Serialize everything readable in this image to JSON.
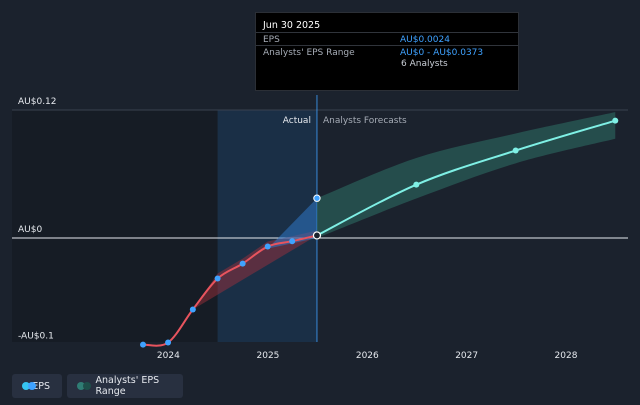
{
  "tooltip": {
    "date": "Jun 30 2025",
    "eps_label": "EPS",
    "eps_value": "AU$0.0024",
    "range_label": "Analysts' EPS Range",
    "range_value": "AU$0 - AU$0.0373",
    "analysts": "6 Analysts"
  },
  "colors": {
    "background": "#1b222d",
    "eps_line": "#e8545e",
    "eps_dot": "#3fa2ff",
    "forecast_line": "#7ff0e5",
    "forecast_band": "#2a5c57",
    "actual_band": "#1f3f63",
    "legend_eps_dot_a": "#36c5f0",
    "legend_eps_dot_b": "#3fa2ff",
    "legend_range_dot_a": "#2f7d74",
    "legend_range_dot_b": "#1e4f4a"
  },
  "legend": [
    {
      "label": "EPS",
      "name": "legend-eps"
    },
    {
      "label": "Analysts' EPS Range",
      "name": "legend-analysts-eps-range"
    }
  ],
  "chart_data": {
    "type": "line",
    "y_tick_labels": [
      {
        "value": 0.12,
        "label": "AU$0.12"
      },
      {
        "value": 0,
        "label": "AU$0"
      },
      {
        "value": -0.1,
        "label": "-AU$0.1"
      }
    ],
    "x_tick_labels": [
      "2024",
      "2025",
      "2026",
      "2027",
      "2028"
    ],
    "ylim": [
      -0.1,
      0.12
    ],
    "xlim": [
      "2023-06-01",
      "2028-06-30"
    ],
    "annotations": {
      "actual": "Actual",
      "forecast": "Analysts Forecasts"
    },
    "divider_date": "2025-06-30",
    "grid": false,
    "series": [
      {
        "name": "EPS",
        "kind": "actual",
        "points": [
          {
            "x": "2023-09-30",
            "y": -0.1
          },
          {
            "x": "2023-12-31",
            "y": -0.098
          },
          {
            "x": "2024-03-31",
            "y": -0.067
          },
          {
            "x": "2024-06-30",
            "y": -0.038
          },
          {
            "x": "2024-09-30",
            "y": -0.024
          },
          {
            "x": "2024-12-31",
            "y": -0.008
          },
          {
            "x": "2025-03-31",
            "y": -0.003
          },
          {
            "x": "2025-06-30",
            "y": 0.0024
          }
        ]
      },
      {
        "name": "Analysts' EPS Range",
        "kind": "range",
        "points": [
          {
            "x": "2025-06-30",
            "low": 0,
            "high": 0.0373
          },
          {
            "x": "2026-06-30",
            "low": 0.037,
            "high": 0.075
          },
          {
            "x": "2027-06-30",
            "low": 0.07,
            "high": 0.098
          },
          {
            "x": "2028-06-30",
            "low": 0.093,
            "high": 0.118
          }
        ]
      },
      {
        "name": "EPS Forecast",
        "kind": "forecast",
        "points": [
          {
            "x": "2025-06-30",
            "y": 0.0024
          },
          {
            "x": "2026-06-30",
            "y": 0.05
          },
          {
            "x": "2027-06-30",
            "y": 0.082
          },
          {
            "x": "2028-06-30",
            "y": 0.11
          }
        ]
      }
    ]
  }
}
